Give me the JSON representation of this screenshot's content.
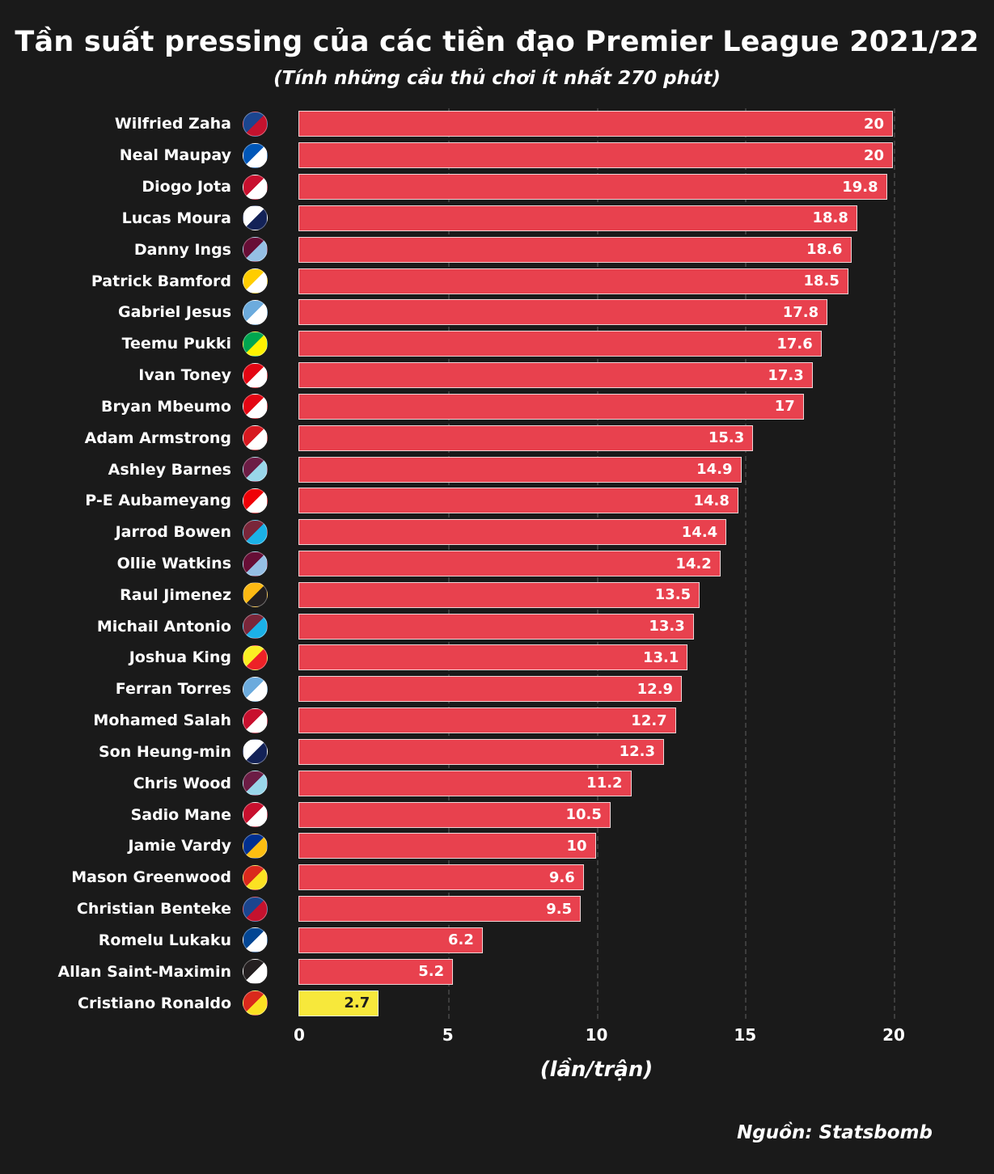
{
  "title": "Tần suất pressing của các tiền đạo Premier League 2021/22",
  "subtitle": "(Tính những cầu thủ chơi ít nhất 270 phút)",
  "source": "Nguồn: Statsbomb",
  "colors": {
    "background": "#1a1a1a",
    "bar": "#e8414e",
    "bar_border": "#f0f0f0",
    "highlight_bar": "#f7e83b",
    "highlight_text": "#1d1d1d",
    "text": "#ffffff",
    "gridline": "#3d3d3d"
  },
  "chart_data": {
    "type": "bar",
    "orientation": "horizontal",
    "title": "Tần suất pressing của các tiền đạo Premier League 2021/22",
    "subtitle": "(Tính những cầu thủ chơi ít nhất 270 phút)",
    "xlabel": "(lần/trận)",
    "xlim": [
      0,
      22
    ],
    "xticks": [
      0,
      5,
      10,
      15,
      20
    ],
    "grid": "dashed-vertical",
    "legend": null,
    "categories": [
      "Wilfried Zaha",
      "Neal Maupay",
      "Diogo Jota",
      "Lucas Moura",
      "Danny Ings",
      "Patrick Bamford",
      "Gabriel Jesus",
      "Teemu Pukki",
      "Ivan Toney",
      "Bryan Mbeumo",
      "Adam Armstrong",
      "Ashley Barnes",
      "P-E Aubameyang",
      "Jarrod Bowen",
      "Ollie Watkins",
      "Raul Jimenez",
      "Michail Antonio",
      "Joshua King",
      "Ferran Torres",
      "Mohamed Salah",
      "Son Heung-min",
      "Chris Wood",
      "Sadio Mane",
      "Jamie Vardy",
      "Mason Greenwood",
      "Christian Benteke",
      "Romelu Lukaku",
      "Allan Saint-Maximin",
      "Cristiano Ronaldo"
    ],
    "values": [
      20,
      20,
      19.8,
      18.8,
      18.6,
      18.5,
      17.8,
      17.6,
      17.3,
      17,
      15.3,
      14.9,
      14.8,
      14.4,
      14.2,
      13.5,
      13.3,
      13.1,
      12.9,
      12.7,
      12.3,
      11.2,
      10.5,
      10,
      9.6,
      9.5,
      6.2,
      5.2,
      2.7
    ],
    "value_labels": [
      "20",
      "20",
      "19.8",
      "18.8",
      "18.6",
      "18.5",
      "17.8",
      "17.6",
      "17.3",
      "17",
      "15.3",
      "14.9",
      "14.8",
      "14.4",
      "14.2",
      "13.5",
      "13.3",
      "13.1",
      "12.9",
      "12.7",
      "12.3",
      "11.2",
      "10.5",
      "10",
      "9.6",
      "9.5",
      "6.2",
      "5.2",
      "2.7"
    ],
    "clubs": [
      "Crystal Palace",
      "Brighton & Hove Albion",
      "Liverpool",
      "Tottenham Hotspur",
      "Aston Villa",
      "Leeds United",
      "Manchester City",
      "Norwich City",
      "Brentford",
      "Brentford",
      "Southampton",
      "Burnley",
      "Arsenal",
      "West Ham United",
      "Aston Villa",
      "Wolverhampton Wanderers",
      "West Ham United",
      "Watford",
      "Manchester City",
      "Liverpool",
      "Tottenham Hotspur",
      "Burnley",
      "Liverpool",
      "Leicester City",
      "Manchester United",
      "Crystal Palace",
      "Chelsea",
      "Newcastle United",
      "Manchester United"
    ],
    "club_colors": [
      [
        "#1b458f",
        "#c4122e"
      ],
      [
        "#0057b8",
        "#ffffff"
      ],
      [
        "#c8102e",
        "#ffffff"
      ],
      [
        "#ffffff",
        "#132257"
      ],
      [
        "#670e36",
        "#95bfe5"
      ],
      [
        "#ffcd00",
        "#ffffff"
      ],
      [
        "#6cabdd",
        "#ffffff"
      ],
      [
        "#00a650",
        "#fff200"
      ],
      [
        "#e30613",
        "#ffffff"
      ],
      [
        "#e30613",
        "#ffffff"
      ],
      [
        "#d71920",
        "#ffffff"
      ],
      [
        "#6c1d45",
        "#99d6ea"
      ],
      [
        "#ef0107",
        "#ffffff"
      ],
      [
        "#7a263a",
        "#1bb1e7"
      ],
      [
        "#670e36",
        "#95bfe5"
      ],
      [
        "#fdb913",
        "#231f20"
      ],
      [
        "#7a263a",
        "#1bb1e7"
      ],
      [
        "#fbee23",
        "#ed2127"
      ],
      [
        "#6cabdd",
        "#ffffff"
      ],
      [
        "#c8102e",
        "#ffffff"
      ],
      [
        "#ffffff",
        "#132257"
      ],
      [
        "#6c1d45",
        "#99d6ea"
      ],
      [
        "#c8102e",
        "#ffffff"
      ],
      [
        "#003090",
        "#fdbe11"
      ],
      [
        "#da291c",
        "#fbe122"
      ],
      [
        "#1b458f",
        "#c4122e"
      ],
      [
        "#034694",
        "#ffffff"
      ],
      [
        "#241f20",
        "#ffffff"
      ],
      [
        "#da291c",
        "#fbe122"
      ]
    ],
    "highlight": {
      "index": 28,
      "color": "#f7e83b",
      "text_color": "#1d1d1d"
    }
  }
}
